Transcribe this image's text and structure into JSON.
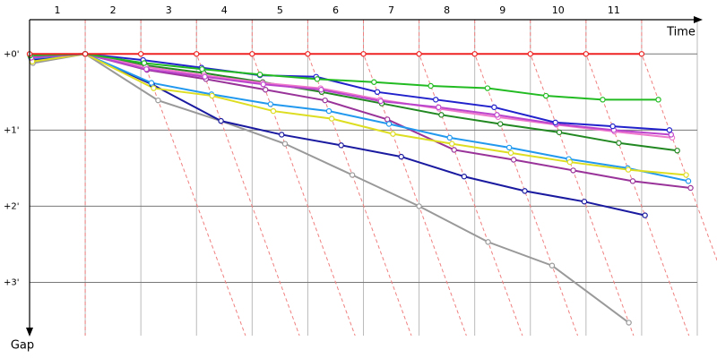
{
  "chart_data": {
    "type": "line",
    "x_label": "Time",
    "y_label": "Gap",
    "xlim": [
      0,
      12
    ],
    "ylim": [
      -0.45,
      3.7
    ],
    "xticks": [
      {
        "value": 0.5,
        "label": "1"
      },
      {
        "value": 1.5,
        "label": "2"
      },
      {
        "value": 2.5,
        "label": "3"
      },
      {
        "value": 3.5,
        "label": "4"
      },
      {
        "value": 4.5,
        "label": "5"
      },
      {
        "value": 5.5,
        "label": "6"
      },
      {
        "value": 6.5,
        "label": "7"
      },
      {
        "value": 7.5,
        "label": "8"
      },
      {
        "value": 8.5,
        "label": "9"
      },
      {
        "value": 9.5,
        "label": "10"
      },
      {
        "value": 10.5,
        "label": "11"
      }
    ],
    "xgrid": [
      1,
      2,
      3,
      4,
      5,
      6,
      7,
      8,
      9,
      10,
      11,
      12
    ],
    "yticks": [
      {
        "value": 0,
        "label": "+0'"
      },
      {
        "value": 1,
        "label": "+1'"
      },
      {
        "value": 2,
        "label": "+2'"
      },
      {
        "value": 3,
        "label": "+3'"
      }
    ],
    "series": [
      {
        "color": "#999999",
        "x": [
          0.06,
          1,
          2.31,
          3.44,
          4.59,
          5.8,
          7.0,
          8.24,
          9.39,
          10.77
        ],
        "values": [
          0.12,
          0,
          0.61,
          0.88,
          1.18,
          1.59,
          2.0,
          2.47,
          2.78,
          3.53
        ]
      },
      {
        "color": "#1a1aa0",
        "x": [
          0.04,
          1,
          2.2,
          3.44,
          4.53,
          5.6,
          6.68,
          7.81,
          8.9,
          9.97,
          11.06
        ],
        "values": [
          0.08,
          0,
          0.4,
          0.88,
          1.06,
          1.2,
          1.35,
          1.61,
          1.8,
          1.94,
          2.12
        ]
      },
      {
        "color": "#993399",
        "x": [
          0.03,
          1,
          2.11,
          3.17,
          4.24,
          5.31,
          6.43,
          7.63,
          8.7,
          9.77,
          10.84,
          11.88
        ],
        "values": [
          0.05,
          0,
          0.21,
          0.33,
          0.47,
          0.61,
          0.86,
          1.26,
          1.39,
          1.53,
          1.67,
          1.76
        ]
      },
      {
        "color": "#2299ee",
        "x": [
          0.03,
          1,
          2.19,
          3.27,
          4.33,
          5.38,
          6.46,
          7.55,
          8.62,
          9.69,
          10.75,
          11.84
        ],
        "values": [
          0.06,
          0,
          0.38,
          0.53,
          0.66,
          0.75,
          0.92,
          1.1,
          1.23,
          1.38,
          1.5,
          1.67
        ]
      },
      {
        "color": "#dddd22",
        "x": [
          0.05,
          1,
          2.23,
          3.28,
          4.38,
          5.43,
          6.53,
          7.59,
          8.65,
          9.71,
          10.76,
          11.8
        ],
        "values": [
          0.1,
          0,
          0.45,
          0.55,
          0.75,
          0.85,
          1.05,
          1.18,
          1.3,
          1.42,
          1.52,
          1.59
        ]
      },
      {
        "color": "#228822",
        "x": [
          0.02,
          1,
          2.08,
          3.13,
          4.19,
          5.25,
          6.33,
          7.4,
          8.46,
          9.52,
          10.59,
          11.64
        ],
        "values": [
          0.04,
          0,
          0.15,
          0.25,
          0.37,
          0.5,
          0.65,
          0.8,
          0.92,
          1.03,
          1.17,
          1.27
        ]
      },
      {
        "color": "#ee77cc",
        "x": [
          0.02,
          1,
          2.09,
          3.14,
          4.19,
          5.23,
          6.3,
          7.36,
          8.42,
          9.47,
          10.51,
          11.55
        ],
        "values": [
          0.03,
          0,
          0.17,
          0.28,
          0.38,
          0.45,
          0.6,
          0.72,
          0.83,
          0.93,
          1.02,
          1.1
        ]
      },
      {
        "color": "#bb44cc",
        "x": [
          0.03,
          1,
          2.1,
          3.15,
          4.2,
          5.24,
          6.31,
          7.35,
          8.4,
          9.46,
          10.5,
          11.53
        ],
        "values": [
          0.05,
          0,
          0.2,
          0.3,
          0.4,
          0.47,
          0.62,
          0.7,
          0.8,
          0.92,
          1.0,
          1.06
        ]
      },
      {
        "color": "#2222cc",
        "x": [
          0.01,
          1,
          2.04,
          3.09,
          4.14,
          5.15,
          6.25,
          7.3,
          8.35,
          9.45,
          10.48,
          11.5
        ],
        "values": [
          0.02,
          0,
          0.08,
          0.18,
          0.28,
          0.3,
          0.5,
          0.6,
          0.7,
          0.9,
          0.95,
          1.0
        ]
      },
      {
        "color": "#22bb22",
        "x": [
          0.01,
          1,
          2.06,
          3.1,
          4.14,
          5.17,
          6.19,
          7.21,
          8.23,
          9.28,
          10.3,
          11.3
        ],
        "values": [
          0.02,
          0,
          0.12,
          0.2,
          0.27,
          0.33,
          0.37,
          0.42,
          0.45,
          0.55,
          0.6,
          0.6
        ]
      },
      {
        "color": "#ee2222",
        "x": [
          0,
          1,
          2,
          3,
          4,
          5,
          6,
          7,
          8,
          9,
          10,
          11
        ],
        "values": [
          0,
          0,
          0,
          0,
          0,
          0,
          0,
          0,
          0,
          0,
          0,
          0
        ]
      }
    ]
  }
}
